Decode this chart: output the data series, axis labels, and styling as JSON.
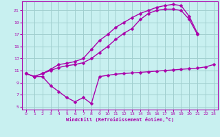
{
  "bg_color": "#c8f0f0",
  "grid_color": "#a0cece",
  "line_color": "#aa00aa",
  "marker": "D",
  "markersize": 2.5,
  "linewidth": 1.0,
  "xlabel": "Windchill (Refroidissement éolien,°C)",
  "xlim": [
    -0.5,
    23.5
  ],
  "ylim": [
    4.5,
    22.5
  ],
  "xticks": [
    0,
    1,
    2,
    3,
    4,
    5,
    6,
    7,
    8,
    9,
    10,
    11,
    12,
    13,
    14,
    15,
    16,
    17,
    18,
    19,
    20,
    21,
    22,
    23
  ],
  "yticks": [
    5,
    7,
    9,
    11,
    13,
    15,
    17,
    19,
    21
  ],
  "line1_x": [
    0,
    1,
    2,
    3,
    4,
    5,
    6,
    7,
    8,
    9,
    10,
    11,
    12,
    13,
    14,
    15,
    16,
    17,
    18,
    19,
    20,
    21,
    22,
    23
  ],
  "line1_y": [
    10.5,
    10.0,
    10.0,
    8.5,
    7.5,
    6.5,
    5.8,
    6.5,
    5.5,
    10.0,
    10.2,
    10.4,
    10.5,
    10.6,
    10.7,
    10.8,
    10.9,
    11.0,
    11.1,
    11.2,
    11.3,
    11.4,
    11.6,
    12.0
  ],
  "line2_x": [
    0,
    1,
    2,
    3,
    4,
    5,
    6,
    7,
    8,
    9,
    10,
    11,
    12,
    13,
    14,
    15,
    16,
    17,
    18,
    19,
    20,
    21
  ],
  "line2_y": [
    10.5,
    10.0,
    10.5,
    11.0,
    11.5,
    11.8,
    12.0,
    12.3,
    13.0,
    14.0,
    15.0,
    16.2,
    17.2,
    18.0,
    19.5,
    20.5,
    21.0,
    21.2,
    21.2,
    21.0,
    19.5,
    17.0
  ],
  "line3_x": [
    0,
    1,
    2,
    3,
    4,
    5,
    6,
    7,
    8,
    9,
    10,
    11,
    12,
    13,
    14,
    15,
    16,
    17,
    18,
    19,
    20,
    21
  ],
  "line3_y": [
    10.5,
    10.0,
    10.5,
    11.2,
    12.0,
    12.2,
    12.5,
    13.0,
    14.5,
    16.0,
    17.0,
    18.2,
    19.0,
    19.8,
    20.5,
    21.0,
    21.5,
    21.8,
    22.0,
    21.8,
    20.0,
    17.2
  ]
}
